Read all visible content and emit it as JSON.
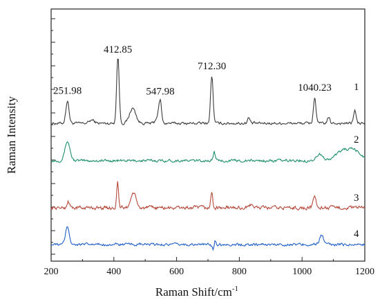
{
  "chart_data": {
    "type": "line",
    "xlabel": "Raman Shift/cm",
    "xlabel_superscript": "-1",
    "ylabel": "Raman Intensity",
    "xlim": [
      200,
      1200
    ],
    "x_ticks": [
      200,
      400,
      600,
      800,
      1000,
      1200
    ],
    "y_tick_labels": "none",
    "grid": false,
    "legend": "none",
    "note": "",
    "series": [
      {
        "name": "1",
        "color": "#3a3a3a",
        "baseline": 0.0,
        "noise": 0.05,
        "peaks": [
          {
            "x": 251.98,
            "h": 1.05,
            "w": 5
          },
          {
            "x": 330,
            "h": 0.15,
            "w": 8
          },
          {
            "x": 412.85,
            "h": 3.1,
            "w": 4
          },
          {
            "x": 460,
            "h": 0.7,
            "w": 10
          },
          {
            "x": 540,
            "h": 0.35,
            "w": 6
          },
          {
            "x": 547.98,
            "h": 0.95,
            "w": 4
          },
          {
            "x": 712.3,
            "h": 2.2,
            "w": 4
          },
          {
            "x": 830,
            "h": 0.25,
            "w": 4
          },
          {
            "x": 1040.23,
            "h": 1.2,
            "w": 4
          },
          {
            "x": 1085,
            "h": 0.25,
            "w": 4
          },
          {
            "x": 1168,
            "h": 0.6,
            "w": 4
          }
        ]
      },
      {
        "name": "2",
        "color": "#1a8f6a",
        "baseline": 0.0,
        "noise": 0.05,
        "peaks": [
          {
            "x": 252,
            "h": 0.9,
            "w": 8
          },
          {
            "x": 720,
            "h": 0.45,
            "w": 3
          },
          {
            "x": 1055,
            "h": 0.3,
            "w": 10
          },
          {
            "x": 1130,
            "h": 0.45,
            "w": 22
          },
          {
            "x": 1170,
            "h": 0.4,
            "w": 20
          }
        ]
      },
      {
        "name": "3",
        "color": "#b5483a",
        "baseline": 0.0,
        "noise": 0.07,
        "peaks": [
          {
            "x": 255,
            "h": 0.3,
            "w": 4
          },
          {
            "x": 412,
            "h": 1.2,
            "w": 3
          },
          {
            "x": 462,
            "h": 0.7,
            "w": 8
          },
          {
            "x": 712,
            "h": 0.7,
            "w": 3
          },
          {
            "x": 840,
            "h": 0.2,
            "w": 5
          },
          {
            "x": 1040,
            "h": 0.6,
            "w": 4
          }
        ]
      },
      {
        "name": "4",
        "color": "#1f5fc9",
        "baseline": 0.0,
        "noise": 0.05,
        "peaks": [
          {
            "x": 252,
            "h": 0.85,
            "w": 6
          },
          {
            "x": 718,
            "h": -0.3,
            "w": 4
          },
          {
            "x": 722,
            "h": 0.35,
            "w": 3
          },
          {
            "x": 1062,
            "h": 0.45,
            "w": 6
          }
        ]
      }
    ],
    "peak_labels": [
      "251.98",
      "412.85",
      "547.98",
      "712.30",
      "1040.23"
    ]
  }
}
